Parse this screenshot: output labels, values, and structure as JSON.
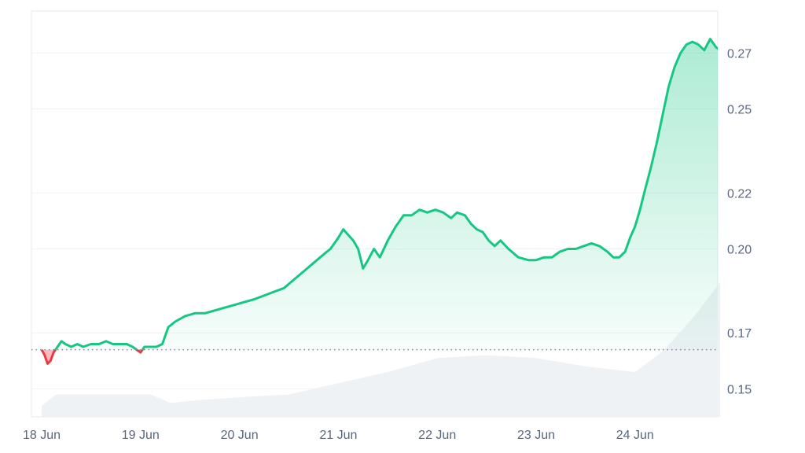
{
  "chart_data": {
    "type": "area",
    "title": "",
    "xlabel": "",
    "ylabel": "",
    "x_axis": {
      "ticks": [
        "18 Jun",
        "19 Jun",
        "20 Jun",
        "21 Jun",
        "22 Jun",
        "23 Jun",
        "24 Jun"
      ],
      "range_days": [
        0,
        7.22
      ]
    },
    "y_axis": {
      "position": "right",
      "ticks": [
        0.15,
        0.17,
        0.2,
        0.22,
        0.25,
        0.27
      ],
      "tick_labels": [
        "0.15",
        "0.17",
        "0.20",
        "0.22",
        "0.25",
        "0.27"
      ],
      "range": [
        0.14,
        0.285
      ]
    },
    "grid": "horizontal",
    "baseline": {
      "value": 0.164,
      "style": "dotted"
    },
    "colors": {
      "above_baseline": "#16c784",
      "below_baseline": "#ea3943",
      "volume": "#eff2f5",
      "grid": "#eff2f5",
      "axis_text": "#58667e"
    },
    "series": [
      {
        "points": [
          [
            0.0,
            0.164
          ],
          [
            0.03,
            0.162
          ],
          [
            0.06,
            0.159
          ],
          [
            0.09,
            0.16
          ],
          [
            0.12,
            0.163
          ],
          [
            0.16,
            0.165
          ],
          [
            0.2,
            0.167
          ],
          [
            0.24,
            0.166
          ],
          [
            0.3,
            0.165
          ],
          [
            0.36,
            0.166
          ],
          [
            0.42,
            0.165
          ],
          [
            0.5,
            0.166
          ],
          [
            0.58,
            0.166
          ],
          [
            0.65,
            0.167
          ],
          [
            0.72,
            0.166
          ],
          [
            0.8,
            0.166
          ],
          [
            0.86,
            0.166
          ],
          [
            0.92,
            0.165
          ],
          [
            0.96,
            0.164
          ],
          [
            1.0,
            0.163
          ],
          [
            1.04,
            0.165
          ],
          [
            1.1,
            0.165
          ],
          [
            1.16,
            0.165
          ],
          [
            1.22,
            0.166
          ],
          [
            1.28,
            0.172
          ],
          [
            1.35,
            0.174
          ],
          [
            1.45,
            0.176
          ],
          [
            1.55,
            0.177
          ],
          [
            1.65,
            0.177
          ],
          [
            1.75,
            0.178
          ],
          [
            1.85,
            0.179
          ],
          [
            1.95,
            0.18
          ],
          [
            2.05,
            0.181
          ],
          [
            2.15,
            0.182
          ],
          [
            2.3,
            0.184
          ],
          [
            2.45,
            0.186
          ],
          [
            2.55,
            0.189
          ],
          [
            2.65,
            0.192
          ],
          [
            2.75,
            0.195
          ],
          [
            2.85,
            0.198
          ],
          [
            2.92,
            0.2
          ],
          [
            3.0,
            0.204
          ],
          [
            3.05,
            0.207
          ],
          [
            3.1,
            0.205
          ],
          [
            3.15,
            0.203
          ],
          [
            3.2,
            0.2
          ],
          [
            3.25,
            0.193
          ],
          [
            3.3,
            0.196
          ],
          [
            3.36,
            0.2
          ],
          [
            3.42,
            0.197
          ],
          [
            3.5,
            0.203
          ],
          [
            3.58,
            0.208
          ],
          [
            3.66,
            0.212
          ],
          [
            3.74,
            0.212
          ],
          [
            3.82,
            0.214
          ],
          [
            3.9,
            0.213
          ],
          [
            3.98,
            0.214
          ],
          [
            4.06,
            0.213
          ],
          [
            4.14,
            0.211
          ],
          [
            4.2,
            0.213
          ],
          [
            4.28,
            0.212
          ],
          [
            4.34,
            0.209
          ],
          [
            4.4,
            0.207
          ],
          [
            4.46,
            0.206
          ],
          [
            4.52,
            0.203
          ],
          [
            4.58,
            0.201
          ],
          [
            4.64,
            0.203
          ],
          [
            4.72,
            0.2
          ],
          [
            4.82,
            0.197
          ],
          [
            4.92,
            0.196
          ],
          [
            5.0,
            0.196
          ],
          [
            5.08,
            0.197
          ],
          [
            5.16,
            0.197
          ],
          [
            5.24,
            0.199
          ],
          [
            5.32,
            0.2
          ],
          [
            5.4,
            0.2
          ],
          [
            5.48,
            0.201
          ],
          [
            5.56,
            0.202
          ],
          [
            5.64,
            0.201
          ],
          [
            5.72,
            0.199
          ],
          [
            5.78,
            0.197
          ],
          [
            5.84,
            0.197
          ],
          [
            5.9,
            0.199
          ],
          [
            5.95,
            0.204
          ],
          [
            6.0,
            0.208
          ],
          [
            6.05,
            0.214
          ],
          [
            6.1,
            0.221
          ],
          [
            6.16,
            0.229
          ],
          [
            6.22,
            0.238
          ],
          [
            6.28,
            0.248
          ],
          [
            6.34,
            0.258
          ],
          [
            6.4,
            0.265
          ],
          [
            6.46,
            0.27
          ],
          [
            6.52,
            0.273
          ],
          [
            6.58,
            0.274
          ],
          [
            6.64,
            0.273
          ],
          [
            6.7,
            0.271
          ],
          [
            6.76,
            0.275
          ],
          [
            6.82,
            0.272
          ],
          [
            6.86,
            0.271
          ]
        ]
      }
    ],
    "volume": {
      "type": "area",
      "values": [
        [
          0.0,
          0.004
        ],
        [
          0.15,
          0.008
        ],
        [
          0.4,
          0.008
        ],
        [
          0.8,
          0.008
        ],
        [
          1.1,
          0.008
        ],
        [
          1.3,
          0.005
        ],
        [
          1.6,
          0.006
        ],
        [
          2.0,
          0.007
        ],
        [
          2.5,
          0.008
        ],
        [
          3.0,
          0.012
        ],
        [
          3.5,
          0.016
        ],
        [
          4.0,
          0.021
        ],
        [
          4.5,
          0.022
        ],
        [
          5.0,
          0.021
        ],
        [
          5.5,
          0.018
        ],
        [
          6.0,
          0.016
        ],
        [
          6.3,
          0.024
        ],
        [
          6.6,
          0.036
        ],
        [
          6.86,
          0.048
        ]
      ]
    }
  }
}
